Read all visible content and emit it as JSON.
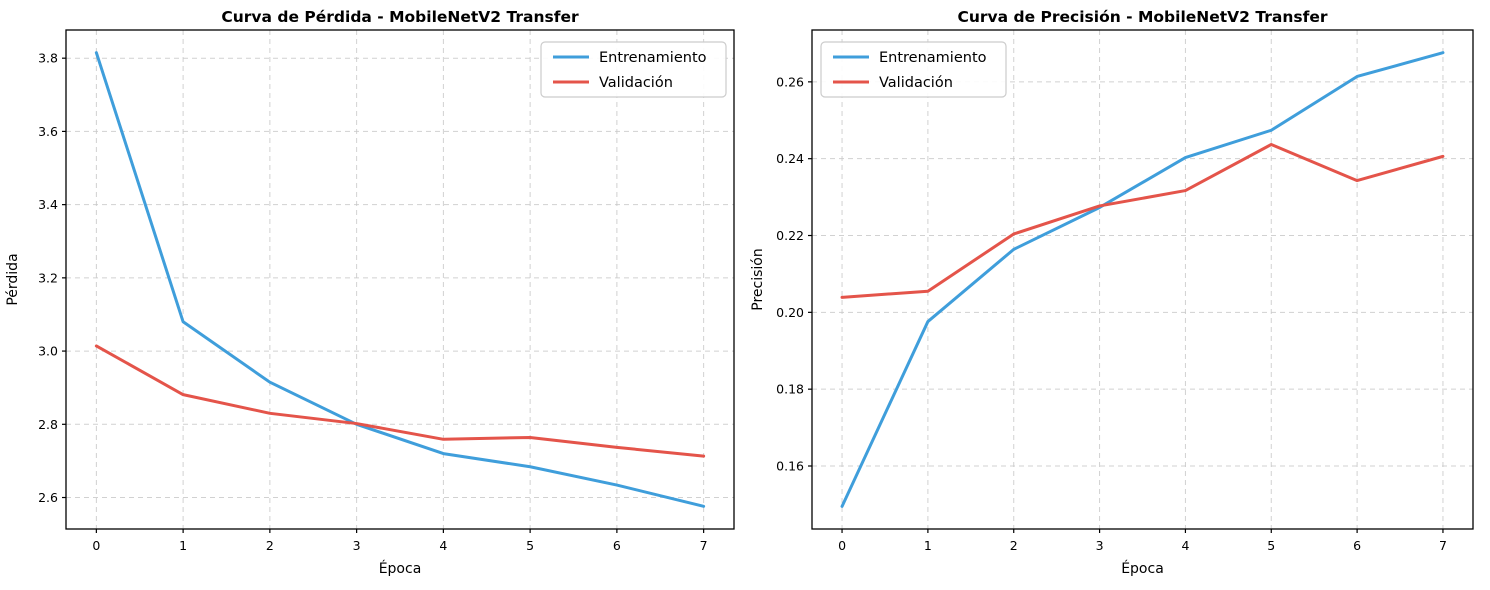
{
  "figure": {
    "background": "#ffffff",
    "grid_color": "#c9c9c9",
    "spine_color": "#000000",
    "text_color": "#000000",
    "legend_border_color": "#cccccc"
  },
  "chart_data": [
    {
      "id": "loss-chart",
      "type": "line",
      "title": "Curva de Pérdida - MobileNetV2 Transfer",
      "xlabel": "Época",
      "ylabel": "Pérdida",
      "x": [
        0,
        1,
        2,
        3,
        4,
        5,
        6,
        7
      ],
      "series": [
        {
          "name": "Entrenamiento",
          "color": "#3f9edb",
          "values": [
            3.815,
            3.08,
            2.915,
            2.8,
            2.72,
            2.684,
            2.634,
            2.576
          ]
        },
        {
          "name": "Validación",
          "color": "#e4544a",
          "values": [
            3.014,
            2.881,
            2.83,
            2.802,
            2.759,
            2.764,
            2.737,
            2.713
          ]
        }
      ],
      "xlim": [
        -0.35,
        7.35
      ],
      "ylim": [
        2.514,
        3.877
      ],
      "xticks": [
        0,
        1,
        2,
        3,
        4,
        5,
        6,
        7
      ],
      "xtick_labels": [
        "0",
        "1",
        "2",
        "3",
        "4",
        "5",
        "6",
        "7"
      ],
      "yticks": [
        2.6,
        2.8,
        3.0,
        3.2,
        3.4,
        3.6,
        3.8
      ],
      "ytick_labels": [
        "2.6",
        "2.8",
        "3.0",
        "3.2",
        "3.4",
        "3.6",
        "3.8"
      ],
      "grid": true,
      "legend_position": "upper-right"
    },
    {
      "id": "accuracy-chart",
      "type": "line",
      "title": "Curva de Precisión - MobileNetV2 Transfer",
      "xlabel": "Época",
      "ylabel": "Precisión",
      "x": [
        0,
        1,
        2,
        3,
        4,
        5,
        6,
        7
      ],
      "series": [
        {
          "name": "Entrenamiento",
          "color": "#3f9edb",
          "values": [
            0.1495,
            0.1976,
            0.2164,
            0.2273,
            0.2403,
            0.2474,
            0.2614,
            0.2676
          ]
        },
        {
          "name": "Validación",
          "color": "#e4544a",
          "values": [
            0.2039,
            0.2055,
            0.2204,
            0.2277,
            0.2317,
            0.2437,
            0.2343,
            0.2406
          ]
        }
      ],
      "xlim": [
        -0.35,
        7.35
      ],
      "ylim": [
        0.1436,
        0.2735
      ],
      "xticks": [
        0,
        1,
        2,
        3,
        4,
        5,
        6,
        7
      ],
      "xtick_labels": [
        "0",
        "1",
        "2",
        "3",
        "4",
        "5",
        "6",
        "7"
      ],
      "yticks": [
        0.16,
        0.18,
        0.2,
        0.22,
        0.24,
        0.26
      ],
      "ytick_labels": [
        "0.16",
        "0.18",
        "0.20",
        "0.22",
        "0.24",
        "0.26"
      ],
      "grid": true,
      "legend_position": "upper-left"
    }
  ]
}
